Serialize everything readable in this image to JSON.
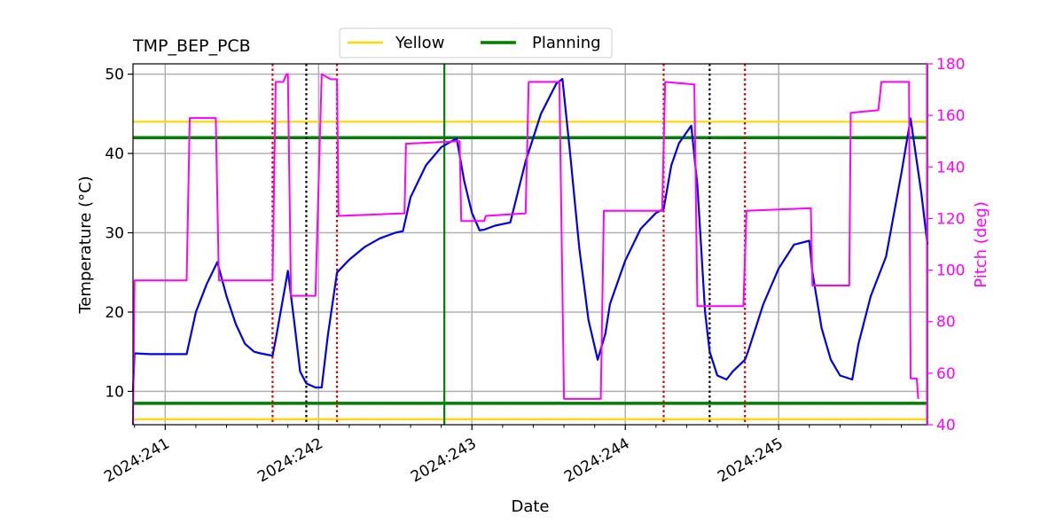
{
  "chart_data": {
    "type": "line",
    "title": "TMP_BEP_PCB",
    "xlabel": "Date",
    "ylabel": "Temperature ($^\\circ$C)",
    "ylabel_display": "Temperature (°C)",
    "y2label": "Pitch (deg)",
    "xlim": [
      240.79,
      245.97
    ],
    "ylim": [
      5.8,
      51.3
    ],
    "y2lim": [
      40,
      180
    ],
    "x_ticks": [
      241,
      242,
      243,
      244,
      245
    ],
    "x_tick_labels": [
      "2024:241",
      "2024:242",
      "2024:243",
      "2024:244",
      "2024:245"
    ],
    "y_ticks": [
      10,
      20,
      30,
      40,
      50
    ],
    "y2_ticks": [
      40,
      60,
      80,
      100,
      120,
      140,
      160,
      180
    ],
    "grid": true,
    "legend": {
      "placement": "top-center",
      "entries": [
        {
          "name": "Yellow",
          "color": "#ffd700"
        },
        {
          "name": "Planning",
          "color": "#008000"
        }
      ]
    },
    "colors": {
      "temperature": "#0000ee",
      "pitch": "#ff00ff",
      "yellow": "#ffd700",
      "planning": "#008000",
      "red_marker": "#dd0000",
      "black_marker": "#000000",
      "grid": "#b0b0b0"
    },
    "hlines": {
      "yellow": [
        44.0,
        6.5
      ],
      "planning": [
        42.0,
        8.5
      ]
    },
    "vlines": {
      "planning_now": 242.82,
      "red_dotted": [
        241.7,
        242.12,
        244.25,
        244.78
      ],
      "black_dotted": [
        241.92,
        244.55
      ]
    },
    "series": [
      {
        "name": "Temperature",
        "axis": "left",
        "x": [
          240.79,
          240.8,
          240.9,
          241.0,
          241.1,
          241.14,
          241.2,
          241.27,
          241.34,
          241.4,
          241.46,
          241.52,
          241.58,
          241.62,
          241.7,
          241.72,
          241.8,
          241.84,
          241.88,
          241.92,
          241.98,
          242.02,
          242.06,
          242.12,
          242.2,
          242.3,
          242.4,
          242.5,
          242.55,
          242.6,
          242.7,
          242.8,
          242.9,
          242.95,
          243.0,
          243.05,
          243.08,
          243.15,
          243.25,
          243.35,
          243.45,
          243.55,
          243.59,
          243.64,
          243.7,
          243.76,
          243.82,
          243.87,
          243.9,
          244.0,
          244.1,
          244.2,
          244.25,
          244.3,
          244.35,
          244.43,
          244.47,
          244.52,
          244.55,
          244.6,
          244.66,
          244.7,
          244.78,
          244.8,
          244.9,
          245.0,
          245.1,
          245.2,
          245.22,
          245.28,
          245.34,
          245.4,
          245.48,
          245.52,
          245.6,
          245.7,
          245.8,
          245.86,
          245.93,
          245.97
        ],
        "values": [
          10.0,
          14.8,
          14.7,
          14.7,
          14.7,
          14.7,
          20.0,
          23.5,
          26.3,
          22.0,
          18.5,
          16.0,
          15.0,
          14.8,
          14.5,
          16.5,
          25.2,
          19.0,
          12.5,
          11.0,
          10.5,
          10.5,
          17.0,
          25.0,
          26.6,
          28.2,
          29.3,
          30.0,
          30.2,
          34.5,
          38.5,
          40.8,
          41.9,
          36.5,
          32.5,
          30.3,
          30.4,
          30.9,
          31.3,
          39.0,
          45.0,
          48.8,
          49.4,
          40.0,
          28.0,
          19.0,
          14.0,
          17.3,
          21.0,
          26.5,
          30.5,
          32.5,
          33.0,
          38.5,
          41.3,
          43.5,
          36.0,
          20.0,
          15.0,
          12.0,
          11.5,
          12.5,
          14.0,
          15.0,
          21.0,
          25.5,
          28.5,
          29.0,
          25.0,
          18.0,
          14.0,
          12.0,
          11.5,
          16.0,
          22.0,
          27.0,
          37.5,
          44.4,
          35.0,
          28.5
        ]
      },
      {
        "name": "Pitch",
        "axis": "right",
        "x": [
          240.79,
          240.8,
          241.14,
          241.16,
          241.33,
          241.35,
          241.7,
          241.72,
          241.77,
          241.79,
          241.8,
          241.82,
          241.98,
          242.02,
          242.08,
          242.12,
          242.13,
          242.56,
          242.57,
          242.92,
          242.93,
          243.08,
          243.09,
          243.35,
          243.37,
          243.57,
          243.6,
          243.84,
          243.86,
          244.24,
          244.26,
          244.45,
          244.47,
          244.77,
          244.79,
          245.21,
          245.22,
          245.46,
          245.47,
          245.65,
          245.67,
          245.85,
          245.86,
          245.9,
          245.91
        ],
        "values": [
          40,
          96,
          96,
          159,
          159,
          96,
          96,
          173,
          173,
          176,
          176,
          90,
          90,
          176,
          174,
          174,
          121,
          122,
          149,
          150,
          119,
          119,
          121,
          122,
          173,
          173,
          50,
          50,
          123,
          123,
          173,
          172,
          86,
          86,
          123,
          124,
          94,
          94,
          161,
          162,
          173,
          173,
          58,
          58,
          50
        ]
      }
    ]
  }
}
